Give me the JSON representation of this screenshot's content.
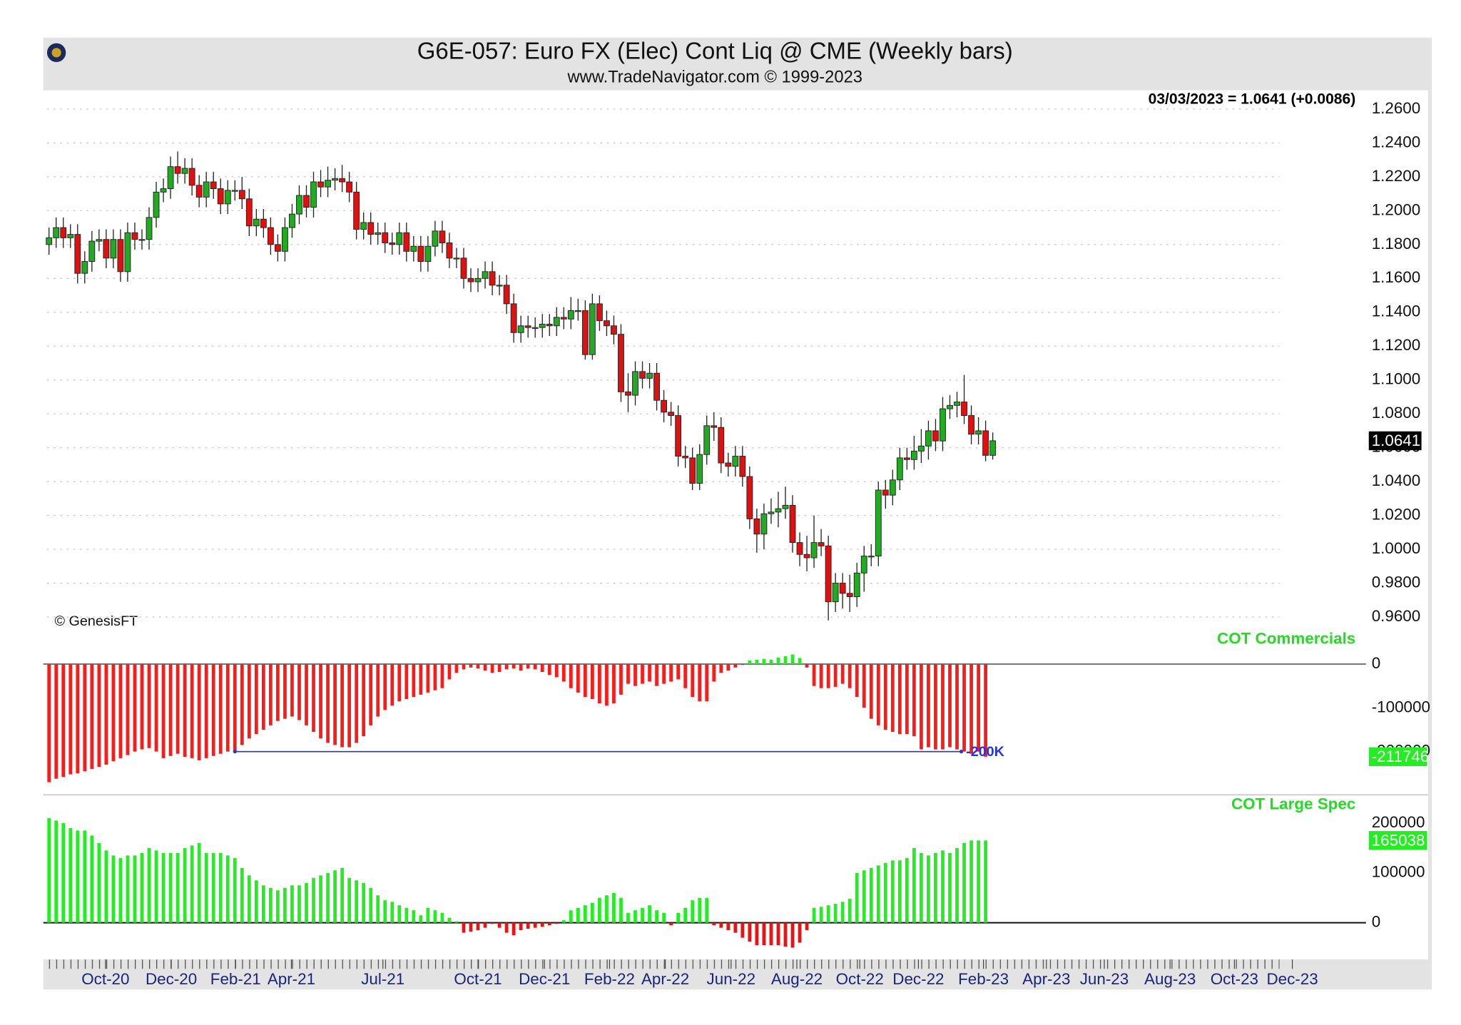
{
  "chart_data": [
    {
      "type": "candlestick",
      "title": "G6E-057:  Euro FX (Elec) Cont Liq @ CME  (Weekly bars)",
      "subtitle": "www.TradeNavigator.com © 1999-2023",
      "copyright": "© GenesisFT",
      "last_quote": "03/03/2023 = 1.0641 (+0.0086)",
      "up_color": "#22aa22",
      "down_color": "#e01010",
      "grid": true,
      "ylim": [
        0.9411,
        1.2711
      ],
      "yticks": [
        {
          "value": 0.96,
          "label": "0.9600"
        },
        {
          "value": 0.98,
          "label": "0.9800"
        },
        {
          "value": 1.0,
          "label": "1.0000"
        },
        {
          "value": 1.02,
          "label": "1.0200"
        },
        {
          "value": 1.04,
          "label": "1.0400"
        },
        {
          "value": 1.06,
          "label": "1.0600"
        },
        {
          "value": 1.08,
          "label": "1.0800"
        },
        {
          "value": 1.1,
          "label": "1.1000"
        },
        {
          "value": 1.12,
          "label": "1.1200"
        },
        {
          "value": 1.14,
          "label": "1.1400"
        },
        {
          "value": 1.16,
          "label": "1.1600"
        },
        {
          "value": 1.18,
          "label": "1.1800"
        },
        {
          "value": 1.2,
          "label": "1.2000"
        },
        {
          "value": 1.22,
          "label": "1.2200"
        },
        {
          "value": 1.24,
          "label": "1.2400"
        },
        {
          "value": 1.26,
          "label": "1.2600"
        }
      ],
      "ohlc": [
        [
          1.18,
          1.19,
          1.174,
          1.184
        ],
        [
          1.184,
          1.196,
          1.178,
          1.19
        ],
        [
          1.19,
          1.196,
          1.178,
          1.184
        ],
        [
          1.184,
          1.192,
          1.178,
          1.186
        ],
        [
          1.186,
          1.192,
          1.157,
          1.163
        ],
        [
          1.163,
          1.176,
          1.157,
          1.17
        ],
        [
          1.17,
          1.188,
          1.164,
          1.182
        ],
        [
          1.182,
          1.189,
          1.176,
          1.183
        ],
        [
          1.183,
          1.189,
          1.166,
          1.172
        ],
        [
          1.172,
          1.189,
          1.166,
          1.183
        ],
        [
          1.183,
          1.189,
          1.158,
          1.164
        ],
        [
          1.164,
          1.193,
          1.158,
          1.187
        ],
        [
          1.187,
          1.193,
          1.177,
          1.183
        ],
        [
          1.183,
          1.189,
          1.177,
          1.183
        ],
        [
          1.183,
          1.202,
          1.177,
          1.196
        ],
        [
          1.196,
          1.217,
          1.19,
          1.211
        ],
        [
          1.211,
          1.219,
          1.205,
          1.213
        ],
        [
          1.213,
          1.232,
          1.207,
          1.226
        ],
        [
          1.226,
          1.235,
          1.216,
          1.222
        ],
        [
          1.222,
          1.231,
          1.216,
          1.225
        ],
        [
          1.225,
          1.231,
          1.209,
          1.215
        ],
        [
          1.215,
          1.221,
          1.202,
          1.208
        ],
        [
          1.208,
          1.223,
          1.202,
          1.217
        ],
        [
          1.217,
          1.223,
          1.207,
          1.213
        ],
        [
          1.213,
          1.219,
          1.198,
          1.204
        ],
        [
          1.204,
          1.218,
          1.198,
          1.212
        ],
        [
          1.212,
          1.218,
          1.206,
          1.212
        ],
        [
          1.212,
          1.22,
          1.201,
          1.207
        ],
        [
          1.207,
          1.213,
          1.185,
          1.191
        ],
        [
          1.191,
          1.201,
          1.185,
          1.195
        ],
        [
          1.195,
          1.201,
          1.184,
          1.19
        ],
        [
          1.19,
          1.196,
          1.174,
          1.18
        ],
        [
          1.18,
          1.186,
          1.17,
          1.176
        ],
        [
          1.176,
          1.196,
          1.17,
          1.19
        ],
        [
          1.19,
          1.204,
          1.184,
          1.198
        ],
        [
          1.198,
          1.215,
          1.192,
          1.209
        ],
        [
          1.209,
          1.215,
          1.196,
          1.202
        ],
        [
          1.202,
          1.223,
          1.196,
          1.217
        ],
        [
          1.217,
          1.224,
          1.208,
          1.214
        ],
        [
          1.214,
          1.226,
          1.208,
          1.218
        ],
        [
          1.218,
          1.225,
          1.212,
          1.219
        ],
        [
          1.219,
          1.227,
          1.211,
          1.217
        ],
        [
          1.217,
          1.223,
          1.205,
          1.211
        ],
        [
          1.211,
          1.217,
          1.183,
          1.189
        ],
        [
          1.189,
          1.199,
          1.183,
          1.193
        ],
        [
          1.193,
          1.199,
          1.18,
          1.186
        ],
        [
          1.186,
          1.193,
          1.18,
          1.187
        ],
        [
          1.187,
          1.193,
          1.175,
          1.181
        ],
        [
          1.181,
          1.187,
          1.174,
          1.18
        ],
        [
          1.18,
          1.193,
          1.174,
          1.187
        ],
        [
          1.187,
          1.193,
          1.17,
          1.176
        ],
        [
          1.176,
          1.185,
          1.17,
          1.179
        ],
        [
          1.179,
          1.185,
          1.164,
          1.17
        ],
        [
          1.17,
          1.185,
          1.164,
          1.179
        ],
        [
          1.179,
          1.194,
          1.173,
          1.188
        ],
        [
          1.188,
          1.194,
          1.175,
          1.181
        ],
        [
          1.181,
          1.187,
          1.166,
          1.172
        ],
        [
          1.172,
          1.178,
          1.166,
          1.172
        ],
        [
          1.172,
          1.178,
          1.154,
          1.16
        ],
        [
          1.16,
          1.166,
          1.152,
          1.158
        ],
        [
          1.158,
          1.166,
          1.152,
          1.16
        ],
        [
          1.16,
          1.17,
          1.154,
          1.164
        ],
        [
          1.164,
          1.17,
          1.15,
          1.156
        ],
        [
          1.156,
          1.162,
          1.15,
          1.156
        ],
        [
          1.156,
          1.162,
          1.139,
          1.145
        ],
        [
          1.145,
          1.151,
          1.122,
          1.128
        ],
        [
          1.128,
          1.138,
          1.122,
          1.132
        ],
        [
          1.132,
          1.138,
          1.125,
          1.131
        ],
        [
          1.131,
          1.137,
          1.125,
          1.131
        ],
        [
          1.131,
          1.139,
          1.125,
          1.133
        ],
        [
          1.133,
          1.139,
          1.126,
          1.132
        ],
        [
          1.132,
          1.143,
          1.126,
          1.137
        ],
        [
          1.137,
          1.143,
          1.13,
          1.136
        ],
        [
          1.136,
          1.149,
          1.13,
          1.141
        ],
        [
          1.141,
          1.148,
          1.135,
          1.141
        ],
        [
          1.141,
          1.147,
          1.112,
          1.115
        ],
        [
          1.115,
          1.151,
          1.112,
          1.145
        ],
        [
          1.145,
          1.15,
          1.129,
          1.135
        ],
        [
          1.135,
          1.141,
          1.126,
          1.132
        ],
        [
          1.132,
          1.138,
          1.121,
          1.127
        ],
        [
          1.127,
          1.133,
          1.087,
          1.093
        ],
        [
          1.093,
          1.104,
          1.081,
          1.091
        ],
        [
          1.091,
          1.111,
          1.085,
          1.105
        ],
        [
          1.105,
          1.111,
          1.095,
          1.101
        ],
        [
          1.101,
          1.11,
          1.095,
          1.104
        ],
        [
          1.104,
          1.11,
          1.082,
          1.088
        ],
        [
          1.088,
          1.094,
          1.075,
          1.081
        ],
        [
          1.081,
          1.087,
          1.073,
          1.079
        ],
        [
          1.079,
          1.085,
          1.049,
          1.055
        ],
        [
          1.055,
          1.061,
          1.048,
          1.054
        ],
        [
          1.054,
          1.06,
          1.035,
          1.039
        ],
        [
          1.039,
          1.062,
          1.035,
          1.056
        ],
        [
          1.056,
          1.079,
          1.05,
          1.073
        ],
        [
          1.073,
          1.081,
          1.064,
          1.072
        ],
        [
          1.072,
          1.078,
          1.045,
          1.051
        ],
        [
          1.051,
          1.057,
          1.043,
          1.049
        ],
        [
          1.049,
          1.061,
          1.043,
          1.055
        ],
        [
          1.055,
          1.061,
          1.037,
          1.043
        ],
        [
          1.043,
          1.049,
          1.012,
          1.018
        ],
        [
          1.018,
          1.024,
          0.998,
          1.009
        ],
        [
          1.009,
          1.027,
          1.0,
          1.021
        ],
        [
          1.021,
          1.03,
          1.015,
          1.022
        ],
        [
          1.022,
          1.034,
          1.013,
          1.024
        ],
        [
          1.024,
          1.037,
          1.018,
          1.026
        ],
        [
          1.026,
          1.032,
          0.998,
          1.004
        ],
        [
          1.004,
          1.01,
          0.99,
          0.997
        ],
        [
          0.997,
          1.008,
          0.987,
          0.995
        ],
        [
          0.995,
          1.02,
          0.989,
          1.004
        ],
        [
          1.004,
          1.012,
          0.996,
          1.002
        ],
        [
          1.002,
          1.008,
          0.958,
          0.969
        ],
        [
          0.969,
          0.986,
          0.963,
          0.98
        ],
        [
          0.98,
          0.986,
          0.965,
          0.974
        ],
        [
          0.974,
          0.985,
          0.963,
          0.972
        ],
        [
          0.972,
          0.992,
          0.966,
          0.986
        ],
        [
          0.986,
          1.002,
          0.975,
          0.996
        ],
        [
          0.996,
          1.003,
          0.99,
          0.996
        ],
        [
          0.996,
          1.04,
          0.99,
          1.035
        ],
        [
          1.035,
          1.041,
          1.024,
          1.032
        ],
        [
          1.032,
          1.047,
          1.026,
          1.041
        ],
        [
          1.041,
          1.06,
          1.035,
          1.054
        ],
        [
          1.054,
          1.06,
          1.047,
          1.053
        ],
        [
          1.053,
          1.067,
          1.047,
          1.058
        ],
        [
          1.058,
          1.071,
          1.051,
          1.061
        ],
        [
          1.061,
          1.076,
          1.053,
          1.07
        ],
        [
          1.07,
          1.077,
          1.058,
          1.064
        ],
        [
          1.064,
          1.09,
          1.058,
          1.083
        ],
        [
          1.083,
          1.091,
          1.077,
          1.085
        ],
        [
          1.085,
          1.093,
          1.078,
          1.087
        ],
        [
          1.087,
          1.103,
          1.074,
          1.079
        ],
        [
          1.079,
          1.085,
          1.062,
          1.068
        ],
        [
          1.068,
          1.078,
          1.062,
          1.07
        ],
        [
          1.07,
          1.076,
          1.052,
          1.0555
        ],
        [
          1.0555,
          1.069,
          1.053,
          1.0641
        ]
      ]
    },
    {
      "type": "bar",
      "title": "COT Commercials",
      "positive_color": "#22ee22",
      "negative_color": "#ff1a1a",
      "ylim": [
        -298900,
        34400
      ],
      "yticks": [
        0,
        -100000,
        -200000
      ],
      "hline": {
        "value": -200000,
        "label": "-200K",
        "color": "#2233ee",
        "x_range": [
          26,
          127.6
        ]
      },
      "values": [
        -270000,
        -262000,
        -258000,
        -252000,
        -250000,
        -245000,
        -240000,
        -235000,
        -230000,
        -222000,
        -215000,
        -208000,
        -200000,
        -195000,
        -192000,
        -200000,
        -215000,
        -210000,
        -205000,
        -212000,
        -215000,
        -220000,
        -215000,
        -210000,
        -205000,
        -200000,
        -198000,
        -185000,
        -170000,
        -160000,
        -150000,
        -140000,
        -130000,
        -125000,
        -120000,
        -128000,
        -140000,
        -155000,
        -170000,
        -180000,
        -185000,
        -190000,
        -190000,
        -180000,
        -165000,
        -140000,
        -120000,
        -105000,
        -95000,
        -85000,
        -80000,
        -75000,
        -70000,
        -65000,
        -60000,
        -55000,
        -35000,
        -20000,
        -12000,
        -8000,
        -10000,
        -15000,
        -20000,
        -18000,
        -12000,
        -10000,
        -15000,
        -10000,
        -12000,
        -18000,
        -25000,
        -30000,
        -40000,
        -55000,
        -65000,
        -75000,
        -80000,
        -90000,
        -95000,
        -90000,
        -70000,
        -45000,
        -50000,
        -45000,
        -40000,
        -50000,
        -45000,
        -40000,
        -35000,
        -55000,
        -75000,
        -85000,
        -85000,
        -40000,
        -20000,
        -15000,
        -8000,
        -2000,
        8000,
        10000,
        12000,
        10000,
        15000,
        18000,
        22000,
        14000,
        -8000,
        -50000,
        -55000,
        -55000,
        -52000,
        -45000,
        -55000,
        -75000,
        -100000,
        -125000,
        -140000,
        -150000,
        -155000,
        -160000,
        -160000,
        -165000,
        -195000,
        -190000,
        -195000,
        -195000,
        -190000,
        -195000,
        -200000,
        -205000,
        -200000,
        -211746
      ]
    },
    {
      "type": "bar",
      "title": "COT Large Spec",
      "positive_color": "#22ee22",
      "negative_color": "#ee1111",
      "ylim": [
        -73600,
        256600
      ],
      "yticks": [
        0,
        100000,
        200000
      ],
      "xlim": [
        -0.8,
        184.2
      ],
      "xticks": [
        {
          "value": 7.9,
          "label": "Oct-20"
        },
        {
          "value": 17.1,
          "label": "Dec-20"
        },
        {
          "value": 26.1,
          "label": "Feb-21"
        },
        {
          "value": 33.9,
          "label": "Apr-21"
        },
        {
          "value": 46.7,
          "label": "Jul-21"
        },
        {
          "value": 60,
          "label": "Oct-21"
        },
        {
          "value": 69.3,
          "label": "Dec-21"
        },
        {
          "value": 78.4,
          "label": "Feb-22"
        },
        {
          "value": 86.2,
          "label": "Apr-22"
        },
        {
          "value": 95.4,
          "label": "Jun-22"
        },
        {
          "value": 104.6,
          "label": "Aug-22"
        },
        {
          "value": 113.4,
          "label": "Oct-22"
        },
        {
          "value": 121.6,
          "label": "Dec-22"
        },
        {
          "value": 130.7,
          "label": "Feb-23"
        },
        {
          "value": 139.5,
          "label": "Apr-23"
        },
        {
          "value": 147.6,
          "label": "Jun-23"
        },
        {
          "value": 156.8,
          "label": "Aug-23"
        },
        {
          "value": 165.8,
          "label": "Oct-23"
        },
        {
          "value": 173.9,
          "label": "Dec-23"
        }
      ],
      "values": [
        210000,
        205000,
        200000,
        190000,
        185000,
        185000,
        175000,
        160000,
        145000,
        135000,
        130000,
        135000,
        135000,
        140000,
        150000,
        145000,
        140000,
        140000,
        140000,
        150000,
        155000,
        160000,
        140000,
        140000,
        140000,
        135000,
        130000,
        110000,
        95000,
        85000,
        75000,
        70000,
        65000,
        70000,
        75000,
        75000,
        80000,
        90000,
        95000,
        100000,
        105000,
        110000,
        90000,
        85000,
        80000,
        70000,
        55000,
        45000,
        42000,
        35000,
        30000,
        25000,
        15000,
        30000,
        25000,
        20000,
        10000,
        3000,
        -20000,
        -18000,
        -15000,
        -10000,
        -2000,
        -10000,
        -20000,
        -25000,
        -15000,
        -12000,
        -10000,
        -8000,
        -5000,
        -2000,
        5000,
        25000,
        30000,
        35000,
        40000,
        50000,
        55000,
        60000,
        50000,
        20000,
        25000,
        30000,
        35000,
        25000,
        20000,
        -5000,
        20000,
        30000,
        45000,
        50000,
        50000,
        -5000,
        -10000,
        -15000,
        -20000,
        -30000,
        -38000,
        -45000,
        -45000,
        -45000,
        -45000,
        -48000,
        -50000,
        -40000,
        -15000,
        30000,
        32000,
        35000,
        38000,
        42000,
        48000,
        100000,
        105000,
        110000,
        115000,
        120000,
        125000,
        125000,
        130000,
        150000,
        140000,
        135000,
        140000,
        145000,
        140000,
        150000,
        160000,
        165000,
        165000,
        165038
      ]
    }
  ]
}
